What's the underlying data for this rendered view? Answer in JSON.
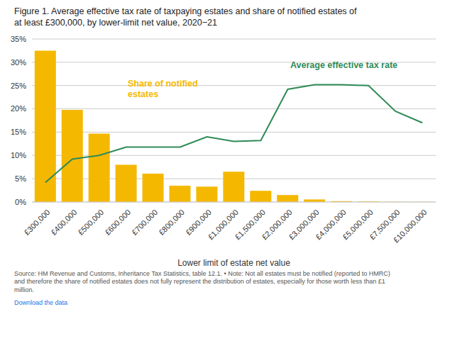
{
  "chart_data": {
    "type": "bar",
    "title": "Figure 1. Average effective tax rate of taxpaying estates and share of notified estates of\nat least £300,000, by lower-limit net value, 2020−21",
    "xlabel": "Lower limit of estate net value",
    "categories": [
      "£300,000",
      "£400,000",
      "£500,000",
      "£600,000",
      "£700,000",
      "£800,000",
      "£900,000",
      "£1,000,000",
      "£1,500,000",
      "£2,000,000",
      "£3,000,000",
      "£4,000,000",
      "£5,000,000",
      "£7,500,000",
      "£10,000,000"
    ],
    "series": [
      {
        "type": "bar",
        "color": "#F5B800",
        "values": [
          32.5,
          19.8,
          14.7,
          8.0,
          6.1,
          3.5,
          3.3,
          6.5,
          2.4,
          1.5,
          0.55,
          0.18,
          0.12,
          0.05,
          0.03
        ]
      },
      {
        "type": "line",
        "color": "#2E8B57",
        "values": [
          4.2,
          9.2,
          10.0,
          11.8,
          11.8,
          11.8,
          14.0,
          13.0,
          13.2,
          24.2,
          25.2,
          25.2,
          25.0,
          19.5,
          17.0
        ]
      }
    ],
    "annotations": [
      {
        "text": "Share of notified\nestates",
        "color": "#F5B800"
      },
      {
        "text": "Average effective tax rate",
        "color": "#2E8B57"
      }
    ],
    "ylim": [
      0,
      35
    ],
    "yticks": [
      {
        "value": 0,
        "label": "0%"
      },
      {
        "value": 5,
        "label": "5%"
      },
      {
        "value": 10,
        "label": "10%"
      },
      {
        "value": 15,
        "label": "15%"
      },
      {
        "value": 20,
        "label": "20%"
      },
      {
        "value": 25,
        "label": "25%"
      },
      {
        "value": 30,
        "label": "30%"
      },
      {
        "value": 35,
        "label": "35%"
      }
    ],
    "grid": true,
    "source": "Source: HM Revenue and Customs, Inheritance Tax Statistics, table 12.1. • Note: Not all estates must be notified (reported to HMRC)\nand therefore the share of notified estates does not fully represent the distribution of estates, especially for those worth less than £1\nmillion.",
    "link": {
      "text": "Download the data",
      "color": "#1a73e8"
    }
  }
}
